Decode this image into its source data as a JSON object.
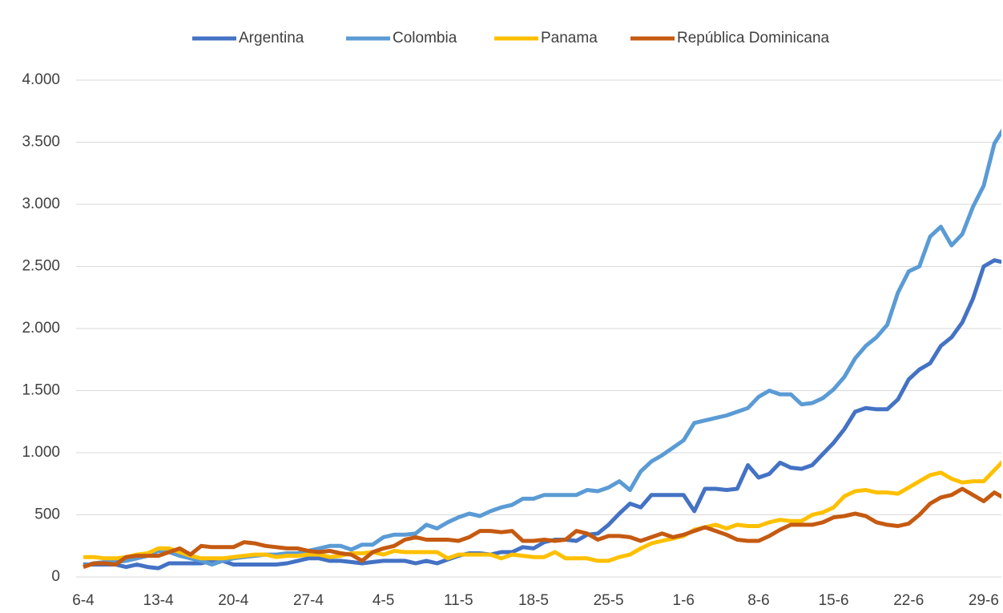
{
  "chart_data": {
    "type": "line",
    "categories": [
      "6-4",
      null,
      null,
      null,
      null,
      null,
      null,
      "13-4",
      null,
      null,
      null,
      null,
      null,
      null,
      "20-4",
      null,
      null,
      null,
      null,
      null,
      null,
      "27-4",
      null,
      null,
      null,
      null,
      null,
      null,
      "4-5",
      null,
      null,
      null,
      null,
      null,
      null,
      "11-5",
      null,
      null,
      null,
      null,
      null,
      null,
      "18-5",
      null,
      null,
      null,
      null,
      null,
      null,
      "25-5",
      null,
      null,
      null,
      null,
      null,
      null,
      "1-6",
      null,
      null,
      null,
      null,
      null,
      null,
      "8-6",
      null,
      null,
      null,
      null,
      null,
      null,
      "15-6",
      null,
      null,
      null,
      null,
      null,
      null,
      "22-6",
      null,
      null,
      null,
      null,
      null,
      null,
      "29-6",
      null,
      null,
      null
    ],
    "series": [
      {
        "name": "Argentina",
        "color": "#4472c4",
        "values": [
          100,
          100,
          100,
          100,
          80,
          100,
          80,
          70,
          110,
          110,
          110,
          110,
          130,
          130,
          100,
          100,
          100,
          100,
          100,
          110,
          130,
          150,
          150,
          130,
          130,
          120,
          110,
          120,
          130,
          130,
          130,
          110,
          130,
          110,
          140,
          170,
          190,
          190,
          180,
          200,
          200,
          240,
          230,
          280,
          300,
          300,
          290,
          340,
          350,
          420,
          510,
          590,
          560,
          660,
          660,
          660,
          660,
          530,
          710,
          710,
          700,
          710,
          900,
          800,
          830,
          920,
          880,
          870,
          900,
          990,
          1080,
          1190,
          1330,
          1360,
          1350,
          1350,
          1430,
          1590,
          1670,
          1720,
          1860,
          1930,
          2050,
          2240,
          2500,
          2550,
          2530,
          2440
        ]
      },
      {
        "name": "Colombia",
        "color": "#5b9bd5",
        "values": [
          90,
          110,
          120,
          120,
          130,
          150,
          170,
          210,
          200,
          170,
          150,
          130,
          100,
          130,
          150,
          160,
          170,
          180,
          180,
          190,
          190,
          210,
          230,
          250,
          250,
          220,
          260,
          260,
          320,
          340,
          340,
          350,
          420,
          390,
          440,
          480,
          510,
          490,
          530,
          560,
          580,
          630,
          630,
          660,
          660,
          660,
          660,
          700,
          690,
          720,
          770,
          700,
          850,
          930,
          980,
          1040,
          1100,
          1240,
          1260,
          1280,
          1300,
          1330,
          1360,
          1450,
          1500,
          1470,
          1470,
          1390,
          1400,
          1440,
          1510,
          1610,
          1760,
          1860,
          1930,
          2030,
          2290,
          2460,
          2500,
          2740,
          2820,
          2670,
          2760,
          2980,
          3150,
          3490,
          3630,
          3480
        ]
      },
      {
        "name": "Panama",
        "color": "#ffc000",
        "values": [
          160,
          160,
          150,
          150,
          160,
          180,
          190,
          230,
          230,
          200,
          170,
          150,
          150,
          150,
          160,
          170,
          180,
          180,
          160,
          170,
          170,
          180,
          180,
          160,
          170,
          190,
          190,
          200,
          180,
          210,
          200,
          200,
          200,
          200,
          150,
          180,
          180,
          180,
          180,
          150,
          180,
          170,
          160,
          160,
          200,
          150,
          150,
          150,
          130,
          130,
          160,
          180,
          230,
          270,
          290,
          310,
          330,
          380,
          400,
          420,
          390,
          420,
          410,
          410,
          440,
          460,
          450,
          450,
          500,
          520,
          560,
          650,
          690,
          700,
          680,
          680,
          670,
          720,
          770,
          820,
          840,
          790,
          760,
          770,
          770,
          860,
          950,
          920
        ]
      },
      {
        "name": "República Dominicana",
        "color": "#c55a11",
        "values": [
          80,
          110,
          110,
          100,
          160,
          170,
          170,
          170,
          200,
          230,
          180,
          250,
          240,
          240,
          240,
          280,
          270,
          250,
          240,
          230,
          230,
          210,
          200,
          210,
          190,
          180,
          130,
          200,
          230,
          250,
          300,
          320,
          300,
          300,
          300,
          290,
          320,
          370,
          370,
          360,
          370,
          290,
          290,
          300,
          290,
          300,
          370,
          350,
          300,
          330,
          330,
          320,
          290,
          320,
          350,
          320,
          340,
          370,
          400,
          370,
          340,
          300,
          290,
          290,
          330,
          380,
          420,
          420,
          420,
          440,
          480,
          490,
          510,
          490,
          440,
          420,
          410,
          430,
          500,
          590,
          640,
          660,
          710,
          660,
          610,
          680,
          630,
          700
        ]
      }
    ],
    "ylim": [
      0,
      4000
    ],
    "yticks": [
      0,
      500,
      {
        "value": 1000,
        "label": "1.000"
      },
      {
        "value": 1500,
        "label": "1.500"
      },
      {
        "value": 2000,
        "label": "2.000"
      },
      {
        "value": 2500,
        "label": "2.500"
      },
      {
        "value": 3000,
        "label": "3.000"
      },
      {
        "value": 3500,
        "label": "3.500"
      },
      {
        "value": 4000,
        "label": "4.000"
      }
    ],
    "grid": true,
    "legend": "top"
  }
}
